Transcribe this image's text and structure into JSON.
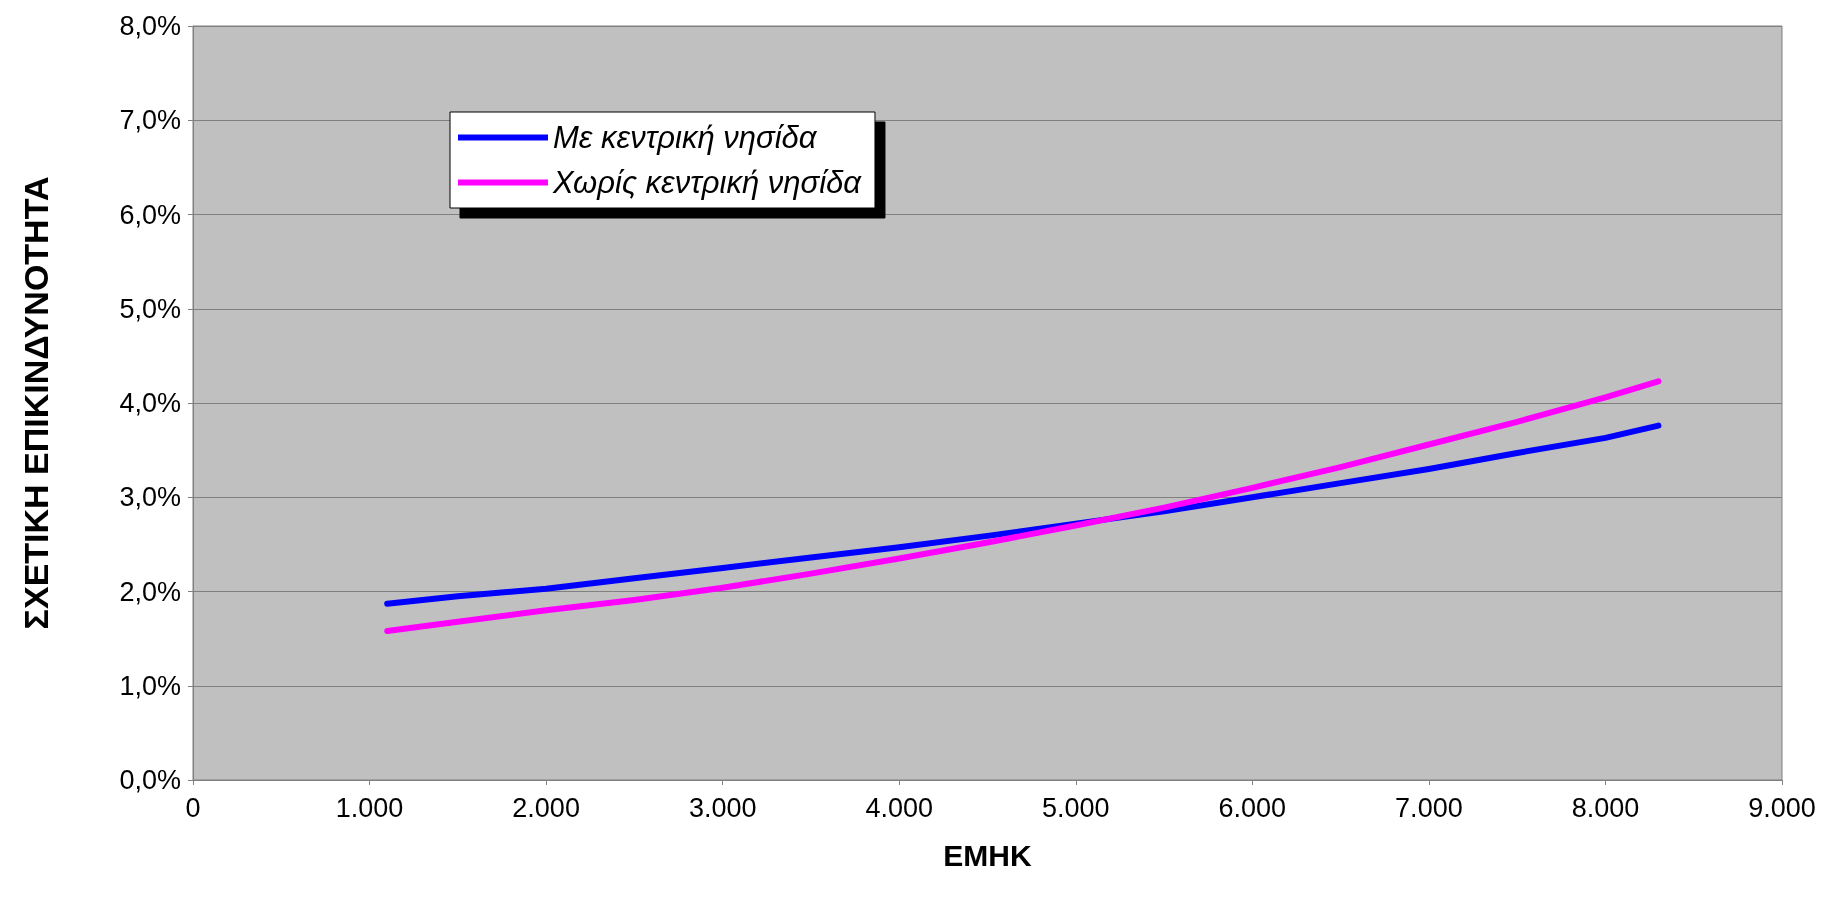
{
  "chart_data": {
    "type": "line",
    "xlabel": "ΕΜΗΚ",
    "ylabel": "ΣΧΕΤΙΚΗ ΕΠΙΚΙΝΔΥΝΟΤΗΤΑ",
    "x": [
      1100,
      1500,
      2000,
      2500,
      3000,
      3500,
      4000,
      4500,
      5000,
      5500,
      6000,
      6500,
      7000,
      7500,
      8000,
      8300
    ],
    "series": [
      {
        "name": "Με κεντρική νησίδα",
        "color": "#0000ff",
        "values": [
          1.87,
          1.95,
          2.03,
          2.14,
          2.25,
          2.36,
          2.47,
          2.59,
          2.72,
          2.85,
          3.0,
          3.15,
          3.3,
          3.47,
          3.63,
          3.76
        ]
      },
      {
        "name": "Χωρίς κεντρική νησίδα",
        "color": "#ff00ff",
        "values": [
          1.58,
          1.68,
          1.8,
          1.91,
          2.04,
          2.19,
          2.35,
          2.52,
          2.7,
          2.89,
          3.1,
          3.32,
          3.56,
          3.8,
          4.06,
          4.23
        ]
      }
    ],
    "xlim": [
      0,
      9000
    ],
    "xticks": [
      0,
      {
        "value": 1000,
        "label": "1.000"
      },
      {
        "value": 2000,
        "label": "2.000"
      },
      {
        "value": 3000,
        "label": "3.000"
      },
      {
        "value": 4000,
        "label": "4.000"
      },
      {
        "value": 5000,
        "label": "5.000"
      },
      {
        "value": 6000,
        "label": "6.000"
      },
      {
        "value": 7000,
        "label": "7.000"
      },
      {
        "value": 8000,
        "label": "8.000"
      },
      {
        "value": 9000,
        "label": "9.000"
      }
    ],
    "ylim": [
      0,
      8
    ],
    "yticks": [
      {
        "value": 0,
        "label": "0,0%"
      },
      {
        "value": 1,
        "label": "1,0%"
      },
      {
        "value": 2,
        "label": "2,0%"
      },
      {
        "value": 3,
        "label": "3,0%"
      },
      {
        "value": 4,
        "label": "4,0%"
      },
      {
        "value": 5,
        "label": "5,0%"
      },
      {
        "value": 6,
        "label": "6,0%"
      },
      {
        "value": 7,
        "label": "7,0%"
      },
      {
        "value": 8,
        "label": "8,0%"
      }
    ],
    "grid": "y",
    "legend": "top left",
    "marker": "none",
    "line_style": "solid"
  }
}
